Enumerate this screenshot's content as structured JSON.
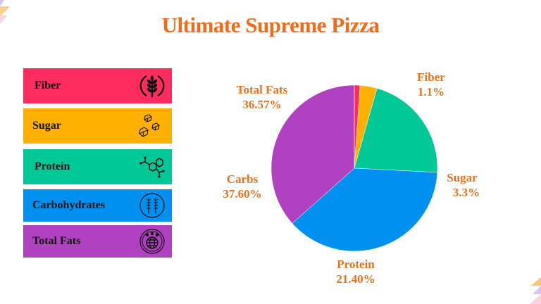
{
  "header": {
    "title": "Ultimate Supreme Pizza"
  },
  "colors": {
    "title": "#F26B1D",
    "label": "#E8711F",
    "fiber": "#FF2D5F",
    "sugar": "#FFB000",
    "protein": "#00C896",
    "carbs": "#0091F0",
    "fats": "#B041C0"
  },
  "legend": {
    "items": [
      {
        "label": "Fiber",
        "icon": "wheat-circle-icon",
        "color": "#FF2D5F"
      },
      {
        "label": "Sugar",
        "icon": "sugar-cubes-icon",
        "color": "#FFB000"
      },
      {
        "label": "Protein",
        "icon": "molecule-icon",
        "color": "#00C896"
      },
      {
        "label": "Carbohydrates",
        "icon": "grain-circle-icon",
        "color": "#0091F0"
      },
      {
        "label": "Total Fats",
        "icon": "globe-people-icon",
        "color": "#B041C0"
      }
    ]
  },
  "pie_labels": {
    "fiber": {
      "name": "Fiber",
      "value": "1.1%"
    },
    "sugar": {
      "name": "Sugar",
      "value": "3.3%"
    },
    "protein": {
      "name": "Protein",
      "value": "21.40%"
    },
    "carbs": {
      "name": "Carbs",
      "value": "37.60%"
    },
    "fats": {
      "name": "Total Fats",
      "value": "36.57%"
    }
  },
  "chart_data": {
    "type": "pie",
    "title": "Ultimate Supreme Pizza",
    "categories": [
      "Fiber",
      "Sugar",
      "Protein",
      "Carbs",
      "Total Fats"
    ],
    "values": [
      1.1,
      3.3,
      21.4,
      37.6,
      36.57
    ],
    "value_labels": [
      "1.1%",
      "3.3%",
      "21.40%",
      "37.60%",
      "36.57%"
    ],
    "colors": [
      "#FF2D5F",
      "#FFB000",
      "#00C896",
      "#0091F0",
      "#B041C0"
    ],
    "start_angle": "12 o'clock",
    "direction": "clockwise",
    "legend": {
      "position": "left",
      "entries": [
        "Fiber",
        "Sugar",
        "Protein",
        "Carbohydrates",
        "Total Fats"
      ]
    }
  }
}
